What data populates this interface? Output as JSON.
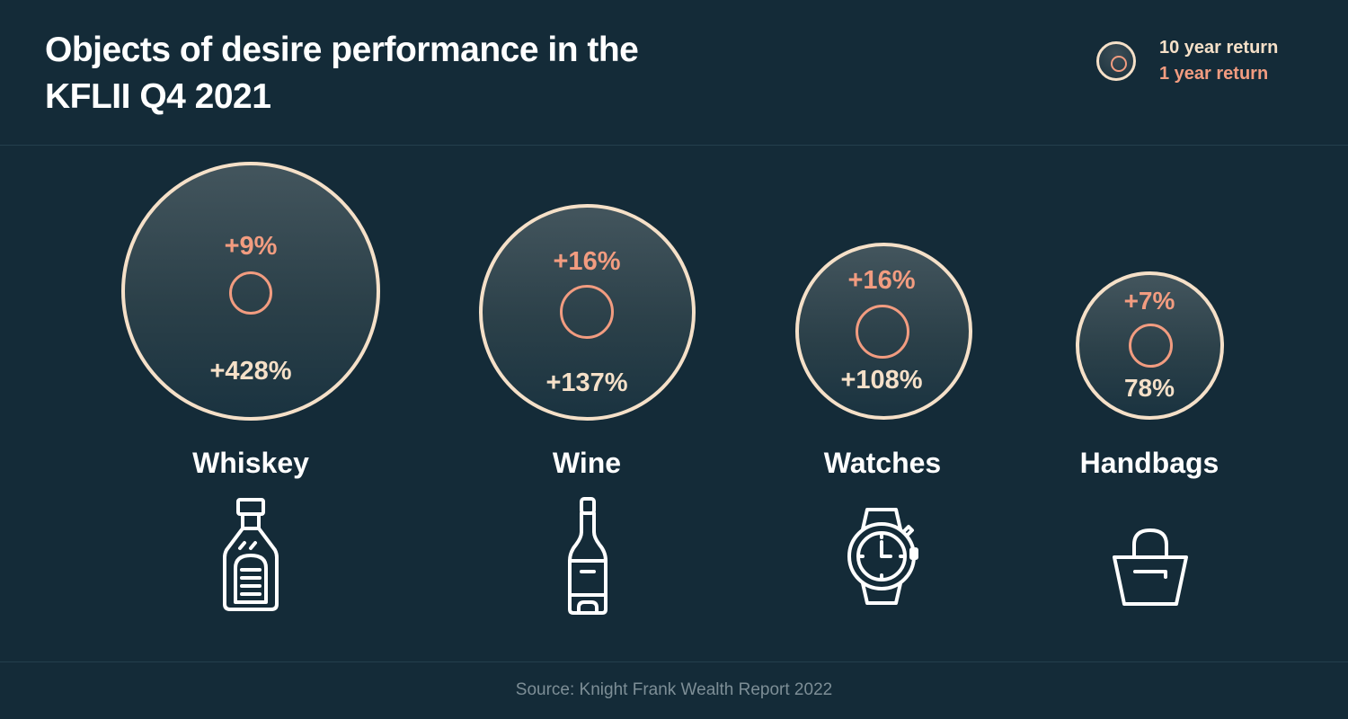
{
  "title": "Objects of desire performance in the KFLII Q4 2021",
  "legend": {
    "ten_year_label": "10 year return",
    "one_year_label": "1 year return"
  },
  "chart_data": {
    "type": "bubble",
    "categories": [
      "Whiskey",
      "Wine",
      "Watches",
      "Handbags"
    ],
    "series": [
      {
        "name": "10 year return",
        "values": [
          428,
          137,
          108,
          78
        ],
        "labels": [
          "+428%",
          "+137%",
          "+108%",
          "78%"
        ]
      },
      {
        "name": "1 year return",
        "values": [
          9,
          16,
          16,
          7
        ],
        "labels": [
          "+9%",
          "+16%",
          "+16%",
          "+7%"
        ]
      }
    ],
    "items": [
      {
        "category": "Whiskey",
        "ten_year": "+428%",
        "one_year": "+9%",
        "icon": "whiskey-bottle-icon"
      },
      {
        "category": "Wine",
        "ten_year": "+137%",
        "one_year": "+16%",
        "icon": "wine-bottle-icon"
      },
      {
        "category": "Watches",
        "ten_year": "+108%",
        "one_year": "+16%",
        "icon": "wristwatch-icon"
      },
      {
        "category": "Handbags",
        "ten_year": "78%",
        "one_year": "+7%",
        "icon": "handbag-icon"
      }
    ]
  },
  "source": "Source: Knight Frank Wealth Report 2022",
  "colors": {
    "background": "#142b38",
    "ten_year": "#f5e0c8",
    "one_year": "#f29c80",
    "text": "#ffffff",
    "source": "#7d8e96"
  }
}
